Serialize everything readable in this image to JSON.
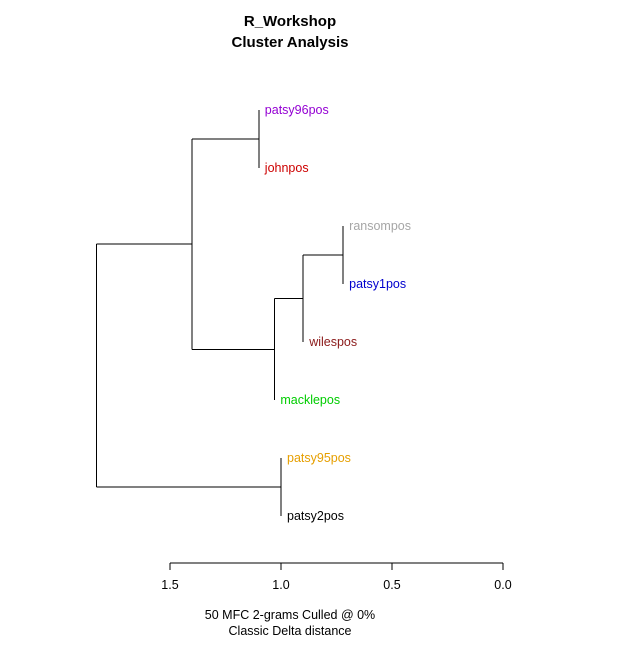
{
  "chart_data": {
    "type": "dendrogram",
    "title": "R_Workshop",
    "subtitle": "Cluster Analysis",
    "caption_line1": "50 MFC 2-grams Culled @ 0%",
    "caption_line2": "Classic Delta distance",
    "xlim": [
      1.5,
      0.0
    ],
    "ticks": [
      {
        "value": 1.5,
        "label": "1.5"
      },
      {
        "value": 1.0,
        "label": "1.0"
      },
      {
        "value": 0.5,
        "label": "0.5"
      },
      {
        "value": 0.0,
        "label": "0.0"
      }
    ],
    "leaves": [
      {
        "id": "patsy96pos",
        "label": "patsy96pos",
        "color": "#9400D3"
      },
      {
        "id": "johnpos",
        "label": "johnpos",
        "color": "#CD0000"
      },
      {
        "id": "ransompos",
        "label": "ransompos",
        "color": "#A6A6A6"
      },
      {
        "id": "patsy1pos",
        "label": "patsy1pos",
        "color": "#0000CD"
      },
      {
        "id": "wilespos",
        "label": "wilespos",
        "color": "#8B1A1A"
      },
      {
        "id": "macklepos",
        "label": "macklepos",
        "color": "#00CD00"
      },
      {
        "id": "patsy95pos",
        "label": "patsy95pos",
        "color": "#E69F00"
      },
      {
        "id": "patsy2pos",
        "label": "patsy2pos",
        "color": "#000000"
      }
    ],
    "merges": [
      {
        "id": "m1",
        "height": 1.1,
        "children": [
          "patsy96pos",
          "johnpos"
        ]
      },
      {
        "id": "m2",
        "height": 0.72,
        "children": [
          "ransompos",
          "patsy1pos"
        ]
      },
      {
        "id": "m3",
        "height": 0.9,
        "children": [
          "m2",
          "wilespos"
        ]
      },
      {
        "id": "m4",
        "height": 1.03,
        "children": [
          "m3",
          "macklepos"
        ]
      },
      {
        "id": "m5",
        "height": 1.4,
        "children": [
          "m1",
          "m4"
        ]
      },
      {
        "id": "m6",
        "height": 1.0,
        "children": [
          "patsy95pos",
          "patsy2pos"
        ]
      },
      {
        "id": "m7",
        "height": 1.83,
        "children": [
          "m5",
          "m6"
        ]
      }
    ]
  }
}
